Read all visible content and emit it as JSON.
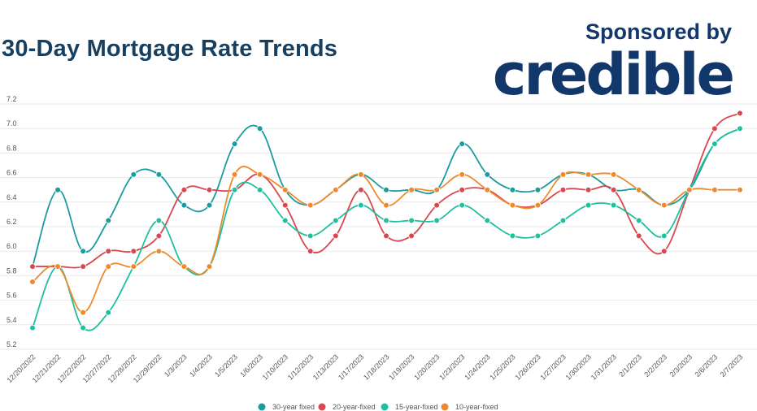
{
  "header": {
    "title": "30-Day Mortgage Rate Trends",
    "sponsor_label": "Sponsored by",
    "brand": "credible"
  },
  "chart_data": {
    "type": "line",
    "title": "30-Day Mortgage Rate Trends",
    "xlabel": "",
    "ylabel": "",
    "ylim": [
      5.2,
      7.2
    ],
    "yticks": [
      5.2,
      5.4,
      5.6,
      5.8,
      6.0,
      6.2,
      6.4,
      6.6,
      6.8,
      7.0,
      7.2
    ],
    "grid": true,
    "legend": "bottom",
    "categories": [
      "12/20/2022",
      "12/21/2022",
      "12/22/2022",
      "12/27/2022",
      "12/28/2022",
      "12/29/2022",
      "1/3/2023",
      "1/4/2023",
      "1/5/2023",
      "1/6/2023",
      "1/10/2023",
      "1/12/2023",
      "1/13/2023",
      "1/17/2023",
      "1/18/2023",
      "1/19/2023",
      "1/20/2023",
      "1/23/2023",
      "1/24/2023",
      "1/25/2023",
      "1/26/2023",
      "1/27/2023",
      "1/30/2023",
      "1/31/2023",
      "2/1/2023",
      "2/2/2023",
      "2/3/2023",
      "2/6/2023",
      "2/7/2023"
    ],
    "series": [
      {
        "name": "30-year fixed",
        "color": "#1a9ba0",
        "values": [
          5.875,
          6.5,
          6.0,
          6.25,
          6.625,
          6.625,
          6.375,
          6.375,
          6.875,
          7.0,
          6.5,
          6.375,
          6.5,
          6.625,
          6.5,
          6.5,
          6.5,
          6.875,
          6.625,
          6.5,
          6.5,
          6.625,
          6.625,
          6.5,
          6.5,
          6.375,
          6.5,
          6.875,
          7.0
        ]
      },
      {
        "name": "20-year-fixed",
        "color": "#d9474f",
        "values": [
          5.875,
          5.875,
          5.875,
          6.0,
          6.0,
          6.125,
          6.5,
          6.5,
          6.5,
          6.625,
          6.375,
          6.0,
          6.125,
          6.5,
          6.125,
          6.125,
          6.375,
          6.5,
          6.5,
          6.375,
          6.375,
          6.5,
          6.5,
          6.5,
          6.125,
          6.0,
          6.5,
          7.0,
          7.125
        ]
      },
      {
        "name": "15-year-fixed",
        "color": "#1fbf9f",
        "values": [
          5.375,
          5.875,
          5.375,
          5.5,
          5.875,
          6.25,
          5.875,
          5.875,
          6.5,
          6.5,
          6.25,
          6.125,
          6.25,
          6.375,
          6.25,
          6.25,
          6.25,
          6.375,
          6.25,
          6.125,
          6.125,
          6.25,
          6.375,
          6.375,
          6.25,
          6.125,
          6.5,
          6.875,
          7.0
        ]
      },
      {
        "name": "10-year-fixed",
        "color": "#ee8a2e",
        "values": [
          5.75,
          5.875,
          5.5,
          5.875,
          5.875,
          6.0,
          5.875,
          5.875,
          6.625,
          6.625,
          6.5,
          6.375,
          6.5,
          6.625,
          6.375,
          6.5,
          6.5,
          6.625,
          6.5,
          6.375,
          6.375,
          6.625,
          6.625,
          6.625,
          6.5,
          6.375,
          6.5,
          6.5,
          6.5
        ]
      }
    ]
  }
}
